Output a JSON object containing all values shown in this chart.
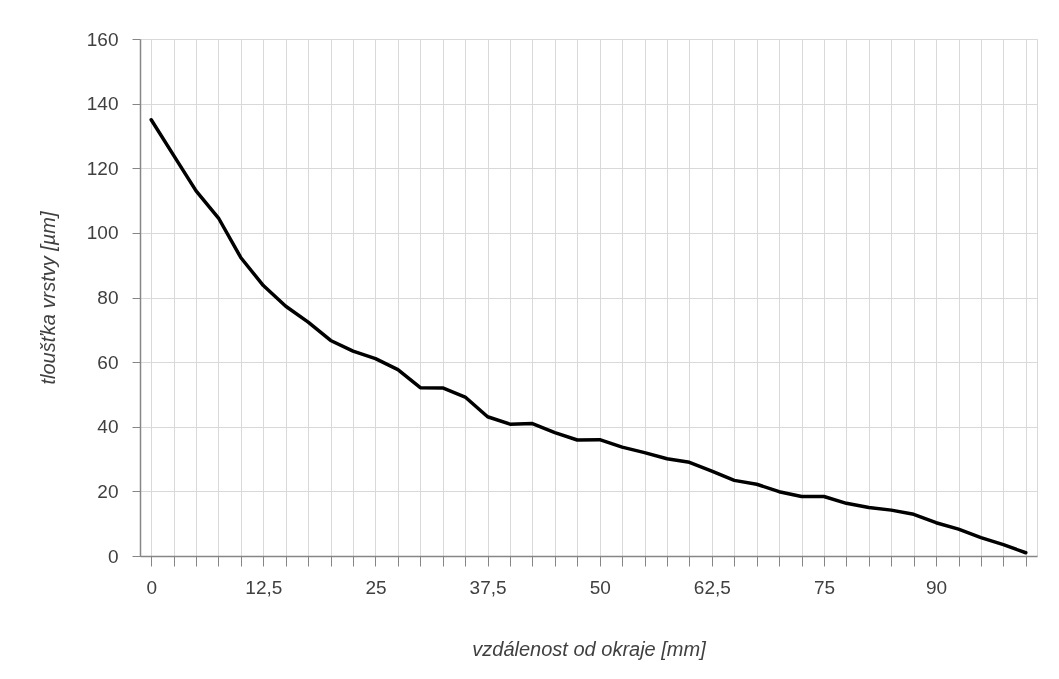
{
  "chart_data": {
    "type": "line",
    "xlabel": "vzdálenost od okraje [mm]",
    "ylabel": "tloušťka vrstvy [µm]",
    "categories": [
      "0",
      null,
      null,
      null,
      null,
      "12,5",
      null,
      null,
      null,
      null,
      "25",
      null,
      null,
      null,
      null,
      "37,5",
      null,
      null,
      null,
      null,
      "50",
      null,
      null,
      null,
      null,
      "62,5",
      null,
      null,
      null,
      null,
      "75",
      null,
      null,
      null,
      null,
      "90",
      null,
      null,
      null,
      null
    ],
    "values": [
      135,
      124,
      113,
      104.6,
      92.3,
      83.7,
      77.3,
      72.4,
      66.7,
      63.4,
      61.1,
      57.7,
      52.1,
      52,
      49.2,
      43.1,
      40.8,
      41,
      38.2,
      35.9,
      36,
      33.7,
      32,
      30.1,
      29,
      26.3,
      23.4,
      22.2,
      19.9,
      18.4,
      18.4,
      16.3,
      15,
      14.2,
      12.9,
      10.3,
      8.3,
      5.7,
      3.5,
      1
    ],
    "color": "#000000",
    "ylim": [
      0,
      160
    ],
    "yticks": [
      0,
      20,
      40,
      60,
      80,
      100,
      120,
      140,
      160
    ],
    "grid": true
  }
}
